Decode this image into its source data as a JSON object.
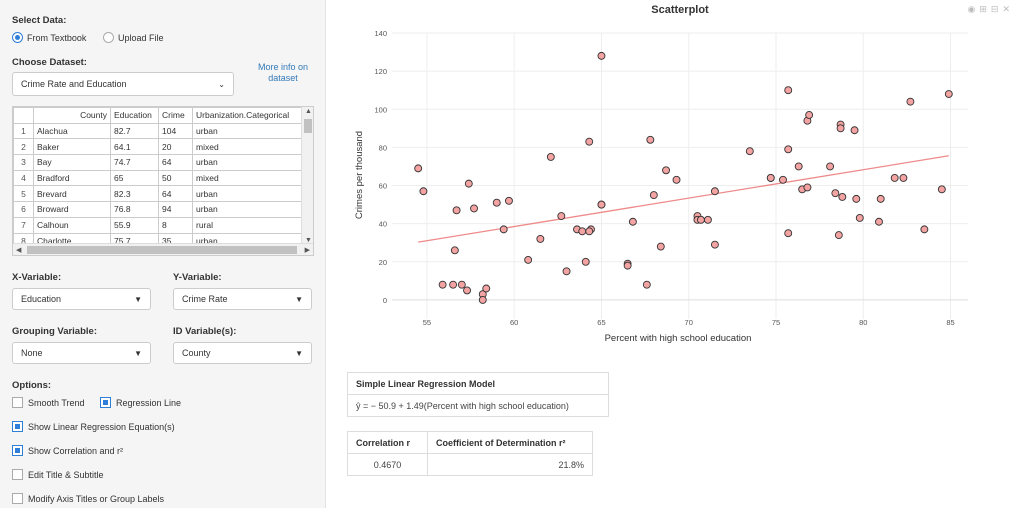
{
  "sidebar": {
    "select_data_label": "Select Data:",
    "radio_textbook": "From Textbook",
    "radio_upload": "Upload File",
    "choose_dataset_label": "Choose Dataset:",
    "dataset_value": "Crime Rate and Education",
    "more_info_line1": "More info on",
    "more_info_line2": "dataset",
    "table": {
      "columns": [
        "",
        "County",
        "Education",
        "Crime",
        "Urbanization.Categorical"
      ],
      "rows": [
        [
          "1",
          "Alachua",
          "82.7",
          "104",
          "urban"
        ],
        [
          "2",
          "Baker",
          "64.1",
          "20",
          "mixed"
        ],
        [
          "3",
          "Bay",
          "74.7",
          "64",
          "urban"
        ],
        [
          "4",
          "Bradford",
          "65",
          "50",
          "mixed"
        ],
        [
          "5",
          "Brevard",
          "82.3",
          "64",
          "urban"
        ],
        [
          "6",
          "Broward",
          "76.8",
          "94",
          "urban"
        ],
        [
          "7",
          "Calhoun",
          "55.9",
          "8",
          "rural"
        ],
        [
          "8",
          "Charlotte",
          "75.7",
          "35",
          "urban"
        ]
      ]
    },
    "x_var_label": "X-Variable:",
    "x_var_value": "Education",
    "y_var_label": "Y-Variable:",
    "y_var_value": "Crime Rate",
    "group_label": "Grouping Variable:",
    "group_value": "None",
    "id_label": "ID Variable(s):",
    "id_value": "County",
    "options_label": "Options:",
    "opt_smooth": "Smooth Trend",
    "opt_regline": "Regression Line",
    "opt_show_eq": "Show Linear Regression Equation(s)",
    "opt_show_corr": "Show Correlation and r²",
    "opt_edit_title": "Edit Title & Subtitle",
    "opt_modify_axis": "Modify Axis Titles or Group Labels"
  },
  "icons": [
    "camera-icon",
    "zoom-in-icon",
    "zoom-out-icon",
    "reset-icon"
  ],
  "colors": {
    "accent": "#2f7ed8",
    "point_fill": "#f4a3a3",
    "reg_line": "#ef8a8a"
  },
  "chart_data": {
    "type": "scatter",
    "title": "Scatterplot",
    "xlabel": "Percent with high school education",
    "ylabel": "Crimes per thousand",
    "xlim": [
      53,
      86
    ],
    "ylim": [
      -10,
      140
    ],
    "xticks": [
      55,
      60,
      65,
      70,
      75,
      80,
      85
    ],
    "yticks": [
      0,
      20,
      40,
      60,
      80,
      100,
      120,
      140
    ],
    "grid": true,
    "points": [
      [
        82.7,
        104
      ],
      [
        64.1,
        20
      ],
      [
        74.7,
        64
      ],
      [
        65,
        50
      ],
      [
        82.3,
        64
      ],
      [
        76.8,
        94
      ],
      [
        55.9,
        8
      ],
      [
        75.7,
        35
      ],
      [
        54.5,
        69
      ],
      [
        54.8,
        57
      ],
      [
        56.5,
        8
      ],
      [
        57,
        8
      ],
      [
        57.3,
        5
      ],
      [
        56.6,
        26
      ],
      [
        56.7,
        47
      ],
      [
        57.4,
        61
      ],
      [
        57.7,
        48
      ],
      [
        58.2,
        3
      ],
      [
        58.2,
        0
      ],
      [
        58.4,
        6
      ],
      [
        59,
        51
      ],
      [
        59.4,
        37
      ],
      [
        59.7,
        52
      ],
      [
        60.8,
        21
      ],
      [
        61.5,
        32
      ],
      [
        62.1,
        75
      ],
      [
        62.7,
        44
      ],
      [
        63,
        15
      ],
      [
        63.6,
        37
      ],
      [
        63.9,
        36
      ],
      [
        64.4,
        37
      ],
      [
        64.3,
        83
      ],
      [
        64.3,
        36
      ],
      [
        65,
        128
      ],
      [
        65,
        50
      ],
      [
        66.5,
        19
      ],
      [
        66.5,
        18
      ],
      [
        66.8,
        41
      ],
      [
        67.6,
        8
      ],
      [
        67.8,
        84
      ],
      [
        68,
        55
      ],
      [
        68.4,
        28
      ],
      [
        68.7,
        68
      ],
      [
        69.3,
        63
      ],
      [
        70.5,
        44
      ],
      [
        70.5,
        42
      ],
      [
        70.7,
        42
      ],
      [
        71.1,
        42
      ],
      [
        71.5,
        29
      ],
      [
        71.5,
        57
      ],
      [
        73.5,
        78
      ],
      [
        74.7,
        64
      ],
      [
        75.4,
        63
      ],
      [
        75.7,
        110
      ],
      [
        75.7,
        79
      ],
      [
        76.3,
        70
      ],
      [
        76.5,
        58
      ],
      [
        76.9,
        97
      ],
      [
        76.8,
        59
      ],
      [
        78.1,
        70
      ],
      [
        78.4,
        56
      ],
      [
        78.7,
        92
      ],
      [
        78.7,
        90
      ],
      [
        78.8,
        54
      ],
      [
        79.5,
        89
      ],
      [
        79.6,
        53
      ],
      [
        79.8,
        43
      ],
      [
        78.6,
        34
      ],
      [
        80.9,
        41
      ],
      [
        81,
        53
      ],
      [
        81.8,
        64
      ],
      [
        83.5,
        37
      ],
      [
        84.5,
        58
      ],
      [
        84.9,
        108
      ]
    ],
    "regression": {
      "intercept": -50.9,
      "slope": 1.49,
      "x_range": [
        54.5,
        84.9
      ]
    }
  },
  "stats": {
    "model_header": "Simple Linear Regression Model",
    "model_equation": "ŷ = − 50.9 + 1.49(Percent with high school education)",
    "corr_header": "Correlation r",
    "coef_header": "Coefficient of Determination r²",
    "corr_value": "0.4670",
    "coef_value": "21.8%"
  }
}
